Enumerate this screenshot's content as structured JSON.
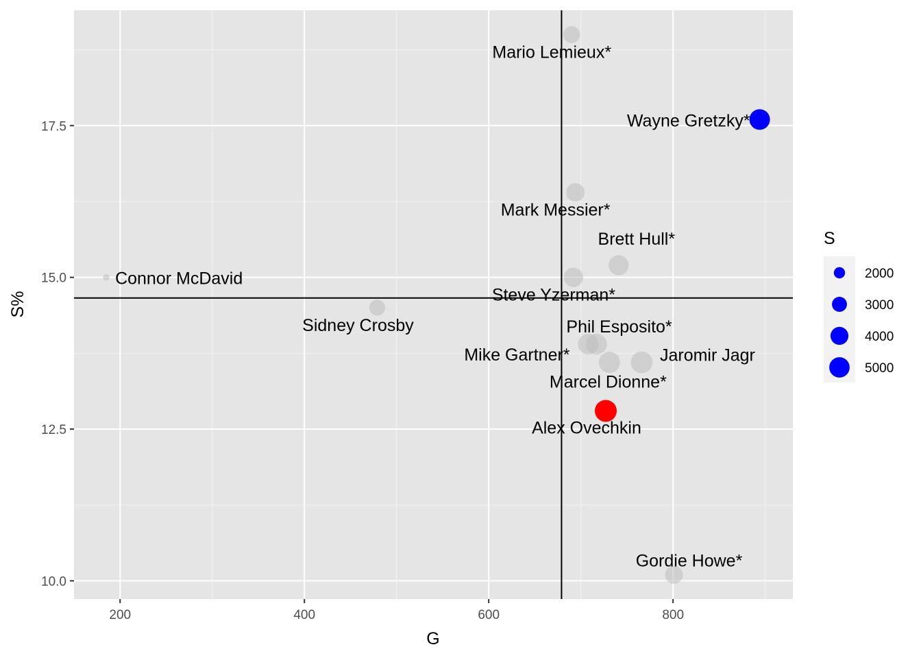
{
  "chart_data": {
    "type": "scatter",
    "xlabel": "G",
    "ylabel": "S%",
    "xlim": [
      150,
      930
    ],
    "ylim": [
      9.7,
      19.4
    ],
    "x_ticks": [
      200,
      400,
      600,
      800
    ],
    "x_tick_labels": [
      "200",
      "400",
      "600",
      "800"
    ],
    "y_ticks": [
      10.0,
      12.5,
      15.0,
      17.5
    ],
    "y_tick_labels": [
      "10.0",
      "12.5",
      "15.0",
      "17.5"
    ],
    "grid": true,
    "reference_lines": {
      "vertical_x": 679,
      "horizontal_y": 14.66
    },
    "size_legend": {
      "title": "S",
      "position": "right",
      "entries": [
        {
          "label": "2000",
          "value": 2000
        },
        {
          "label": "3000",
          "value": 3000
        },
        {
          "label": "4000",
          "value": 4000
        },
        {
          "label": "5000",
          "value": 5000
        }
      ]
    },
    "points": [
      {
        "name": "Wayne Gretzky*",
        "G": 894,
        "S_pct": 17.6,
        "S": 5088,
        "color": "#0000ff"
      },
      {
        "name": "Gordie Howe*",
        "G": 801,
        "S_pct": 10.1,
        "S": 4000,
        "color": "#bebebe"
      },
      {
        "name": "Jaromir Jagr",
        "G": 766,
        "S_pct": 13.6,
        "S": 5637,
        "color": "#bebebe"
      },
      {
        "name": "Brett Hull*",
        "G": 741,
        "S_pct": 15.2,
        "S": 4876,
        "color": "#bebebe"
      },
      {
        "name": "Marcel Dionne*",
        "G": 731,
        "S_pct": 13.6,
        "S": 5366,
        "color": "#bebebe"
      },
      {
        "name": "Alex Ovechkin",
        "G": 727,
        "S_pct": 12.8,
        "S": 5700,
        "color": "#ff0000"
      },
      {
        "name": "Phil Esposito*",
        "G": 717,
        "S_pct": 13.9,
        "S": 5166,
        "color": "#bebebe"
      },
      {
        "name": "Mike Gartner*",
        "G": 708,
        "S_pct": 13.9,
        "S": 5090,
        "color": "#bebebe"
      },
      {
        "name": "Mark Messier*",
        "G": 694,
        "S_pct": 16.4,
        "S": 4221,
        "color": "#bebebe"
      },
      {
        "name": "Steve Yzerman*",
        "G": 692,
        "S_pct": 15.0,
        "S": 4602,
        "color": "#bebebe"
      },
      {
        "name": "Mario Lemieux*",
        "G": 690,
        "S_pct": 19.0,
        "S": 3633,
        "color": "#bebebe"
      },
      {
        "name": "Sidney Crosby",
        "G": 479,
        "S_pct": 14.5,
        "S": 3307,
        "color": "#bebebe"
      },
      {
        "name": "Connor McDavid",
        "G": 185,
        "S_pct": 15.0,
        "S": 1234,
        "color": "#bebebe"
      }
    ]
  },
  "colors": {
    "panel": "#e5e5e5",
    "grid_major": "#ffffff",
    "grid_minor": "#f2f2f2",
    "highlight_blue": "#0000ff",
    "highlight_red": "#ff0000",
    "other_points": "#bebebe",
    "reference_line": "#000000"
  }
}
